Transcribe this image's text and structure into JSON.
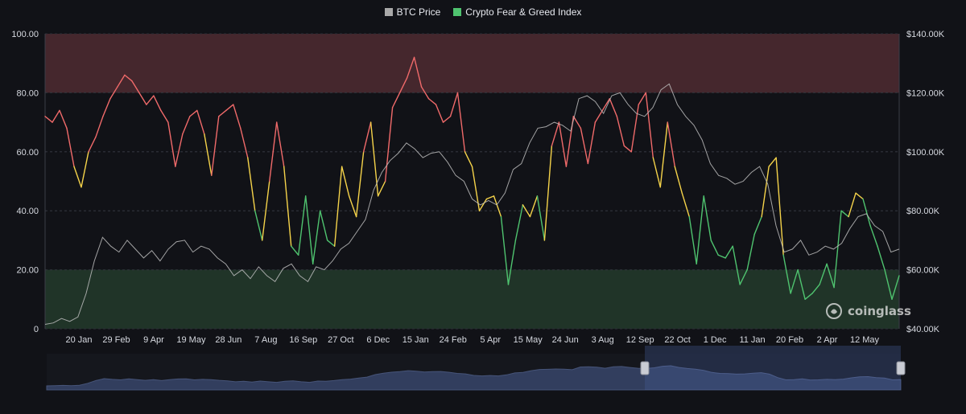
{
  "legend": {
    "items": [
      {
        "label": "BTC Price",
        "color": "#a9a9a9"
      },
      {
        "label": "Crypto Fear & Greed Index",
        "color": "#4fc36f"
      }
    ]
  },
  "watermark": {
    "text": "coinglass"
  },
  "colors": {
    "greed": "#f06a6a",
    "neutral": "#f5d34a",
    "fear": "#4fc36f",
    "price": "#bdbdbd",
    "greed_zone": "#4b2a30",
    "fear_zone": "#22392a",
    "navigator": "#4a5f94"
  },
  "chart_data": {
    "type": "line",
    "y_left_ticks": [
      "0",
      "20.00",
      "40.00",
      "60.00",
      "80.00",
      "100.00"
    ],
    "y_left_range": [
      0,
      100
    ],
    "y_right_ticks": [
      "$40.00K",
      "$60.00K",
      "$80.00K",
      "$100.00K",
      "$120.00K",
      "$140.00K"
    ],
    "y_right_range": [
      40000,
      140000
    ],
    "x_ticks": [
      "20 Jan",
      "29 Feb",
      "9 Apr",
      "19 May",
      "28 Jun",
      "7 Aug",
      "16 Sep",
      "27 Oct",
      "6 Dec",
      "15 Jan",
      "24 Feb",
      "5 Apr",
      "15 May",
      "24 Jun",
      "3 Aug",
      "12 Sep",
      "22 Oct",
      "1 Dec",
      "11 Jan",
      "20 Feb",
      "2 Apr",
      "12 May"
    ],
    "zones": [
      {
        "name": "greed",
        "from": 80,
        "to": 100
      },
      {
        "name": "fear",
        "from": 0,
        "to": 20
      }
    ],
    "thresholds": {
      "fear_below": 40,
      "greed_above": 60
    },
    "grid": true,
    "legend_position": "top-center",
    "series": [
      {
        "name": "Crypto Fear & Greed Index",
        "axis": "left",
        "values": [
          72,
          70,
          74,
          68,
          55,
          48,
          60,
          65,
          72,
          78,
          82,
          86,
          84,
          80,
          76,
          79,
          74,
          70,
          55,
          66,
          72,
          74,
          66,
          52,
          72,
          74,
          76,
          68,
          58,
          40,
          30,
          50,
          70,
          55,
          28,
          25,
          45,
          22,
          40,
          30,
          28,
          55,
          45,
          38,
          60,
          70,
          45,
          50,
          75,
          80,
          85,
          92,
          82,
          78,
          76,
          70,
          72,
          80,
          60,
          55,
          40,
          44,
          45,
          38,
          15,
          30,
          42,
          38,
          45,
          30,
          62,
          70,
          55,
          72,
          68,
          56,
          70,
          74,
          78,
          72,
          62,
          60,
          76,
          80,
          58,
          48,
          70,
          55,
          46,
          38,
          22,
          45,
          30,
          25,
          24,
          28,
          15,
          20,
          32,
          38,
          55,
          58,
          25,
          12,
          20,
          10,
          12,
          15,
          22,
          14,
          40,
          38,
          46,
          44,
          35,
          28,
          20,
          10,
          18
        ]
      },
      {
        "name": "BTC Price",
        "axis": "right",
        "values": [
          41500,
          42000,
          43500,
          42500,
          44000,
          52000,
          63000,
          71000,
          68000,
          66000,
          70000,
          67000,
          64000,
          66500,
          63000,
          67000,
          69500,
          70000,
          66000,
          68000,
          67000,
          64000,
          62000,
          58000,
          60000,
          57000,
          61000,
          58000,
          56000,
          60500,
          62000,
          58000,
          56000,
          61000,
          60000,
          63000,
          67000,
          69000,
          73000,
          77000,
          87000,
          93000,
          97000,
          99500,
          103000,
          101000,
          98000,
          99500,
          100000,
          96500,
          92000,
          90000,
          84000,
          82000,
          83500,
          82000,
          86000,
          94000,
          96000,
          103000,
          108000,
          108500,
          110000,
          109000,
          107000,
          118000,
          119000,
          117000,
          113000,
          119000,
          120000,
          116000,
          113000,
          112000,
          115000,
          121000,
          123000,
          116000,
          112000,
          109000,
          104000,
          96000,
          92000,
          91000,
          89000,
          90000,
          93000,
          95000,
          89000,
          75000,
          66000,
          67000,
          70000,
          65000,
          66000,
          68000,
          67000,
          69000,
          74000,
          78000,
          79000,
          75000,
          73000,
          66000,
          67000
        ]
      }
    ]
  }
}
